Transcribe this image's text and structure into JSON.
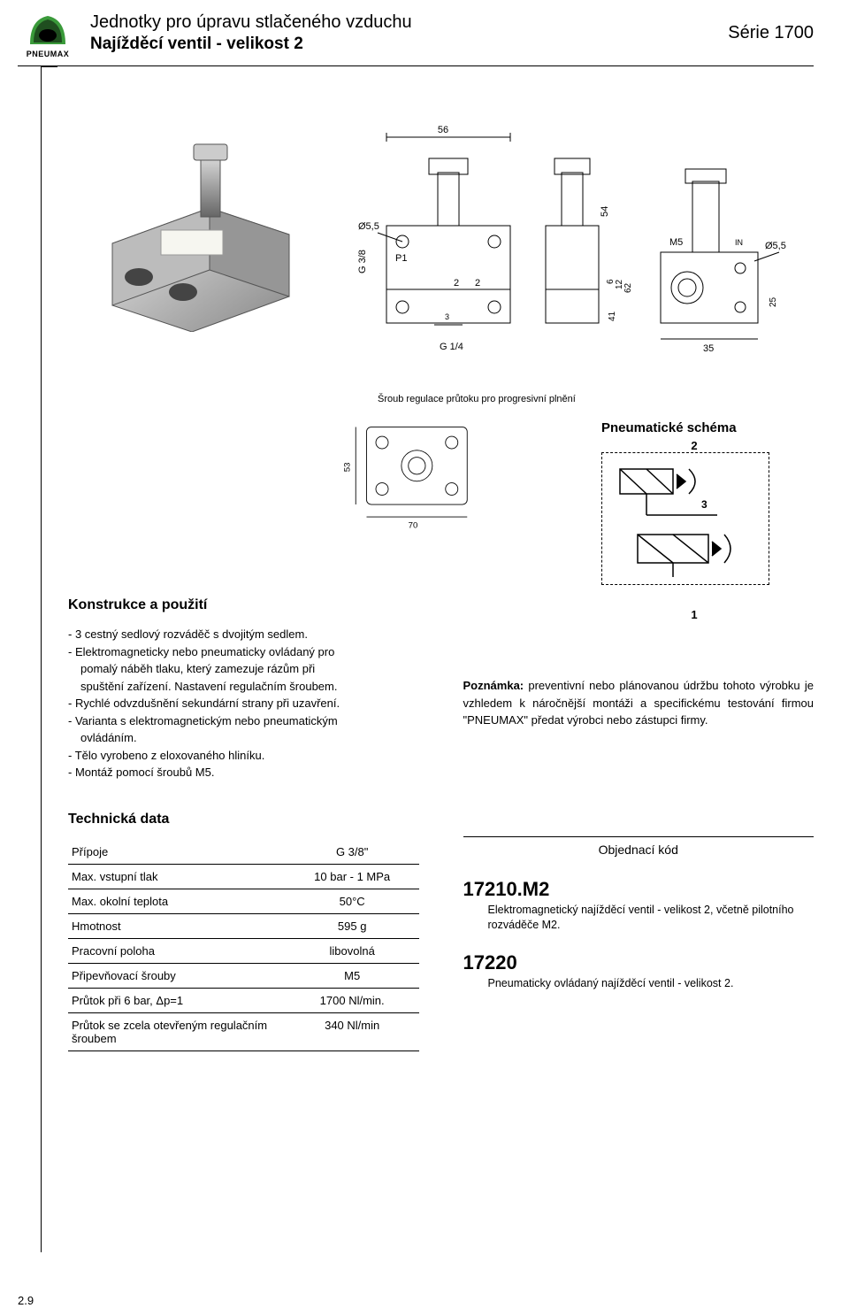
{
  "header": {
    "logo_brand": "PNEUMAX",
    "title": "Jednotky pro úpravu stlačeného vzduchu",
    "subtitle": "Najížděcí ventil - velikost 2",
    "series": "Série 1700"
  },
  "drawing": {
    "dim_56": "56",
    "dim_54": "54",
    "dim_55a": "Ø5,5",
    "dim_55b": "Ø5,5",
    "m5": "M5",
    "g38": "G 3/8",
    "p1": "P1",
    "two": "2",
    "twob": "2",
    "g14": "G 1/4",
    "d6": "6",
    "d12": "12",
    "d41": "41",
    "d62": "62",
    "d35": "35",
    "d25": "25",
    "in": "IN",
    "three": "3",
    "prog_screw": "Šroub regulace průtoku pro progresivní plnění",
    "bottom_53": "53",
    "bottom_70": "70"
  },
  "schema": {
    "title": "Pneumatické schéma",
    "n1": "1",
    "n2": "2",
    "n3": "3"
  },
  "construction": {
    "heading": "Konstrukce a použití",
    "l1": "- 3 cestný sedlový rozváděč s dvojitým sedlem.",
    "l2": "- Elektromagneticky nebo pneumaticky ovládaný pro",
    "l2b": "pomalý náběh tlaku, který zamezuje rázům při",
    "l2c": "spuštění zařízení. Nastavení regulačním šroubem.",
    "l3": "- Rychlé odvzdušnění sekundární strany při uzavření.",
    "l4": "- Varianta s elektromagnetickým nebo pneumatickým",
    "l4b": "ovládáním.",
    "l5": "- Tělo vyrobeno z eloxovaného hliníku.",
    "l6": "- Montáž pomocí šroubů M5."
  },
  "note": {
    "label": "Poznámka:",
    "text": " preventivní nebo plánovanou údržbu tohoto výrobku je vzhledem k náročnější montáži a specifickému testování firmou \"PNEUMAX\" předat výrobci nebo zástupci firmy."
  },
  "tech": {
    "heading": "Technická data",
    "rows": [
      {
        "k": "Přípoje",
        "v": "G 3/8\""
      },
      {
        "k": "Max. vstupní tlak",
        "v": "10 bar - 1 MPa"
      },
      {
        "k": "Max. okolní teplota",
        "v": "50°C"
      },
      {
        "k": "Hmotnost",
        "v": "595 g"
      },
      {
        "k": "Pracovní poloha",
        "v": "libovolná"
      },
      {
        "k": "Připevňovací šrouby",
        "v": "M5"
      },
      {
        "k": "Průtok při 6 bar, Δp=1",
        "v": "1700 Nl/min."
      },
      {
        "k": "Průtok se zcela otevřeným regulačním šroubem",
        "v": "340 Nl/min"
      }
    ]
  },
  "order": {
    "label": "Objednací kód",
    "items": [
      {
        "code": "17210.M2",
        "desc": "Elektromagnetický najížděcí ventil - velikost 2, včetně pilotního rozváděče M2."
      },
      {
        "code": "17220",
        "desc": "Pneumaticky ovládaný najížděcí ventil - velikost 2."
      }
    ]
  },
  "page_num": "2.9",
  "colors": {
    "logo_green": "#3a9a3a",
    "logo_dark": "#1f4e1f"
  }
}
